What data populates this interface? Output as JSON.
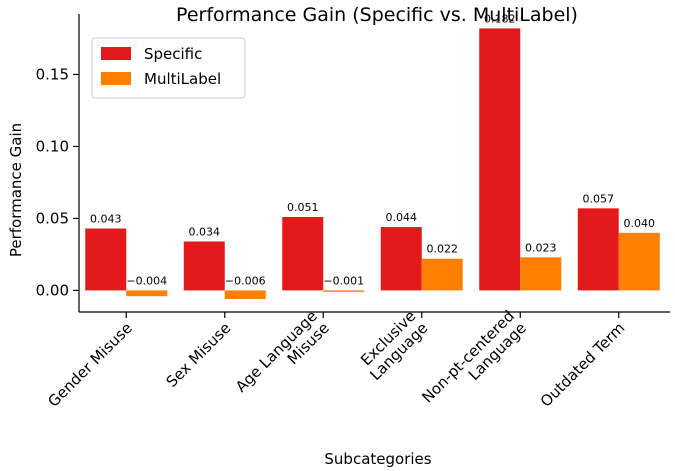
{
  "chart_data": {
    "type": "bar",
    "title": "Performance Gain (Specific vs. MultiLabel)",
    "xlabel": "Subcategories",
    "ylabel": "Performance Gain",
    "categories": [
      [
        "Gender Misuse"
      ],
      [
        "Sex Misuse"
      ],
      [
        "Age Language",
        "Misuse"
      ],
      [
        "Exclusive",
        "Language"
      ],
      [
        "Non-pt-centered",
        "Language"
      ],
      [
        "Outdated Term"
      ]
    ],
    "series": [
      {
        "name": "Specific",
        "color": "#e31a1c",
        "values": [
          0.043,
          0.034,
          0.051,
          0.044,
          0.182,
          0.057
        ],
        "labels": [
          "0.043",
          "0.034",
          "0.051",
          "0.044",
          "0.182",
          "0.057"
        ]
      },
      {
        "name": "MultiLabel",
        "color": "#ff7f00",
        "values": [
          -0.004,
          -0.006,
          -0.001,
          0.022,
          0.023,
          0.04
        ],
        "labels": [
          "−0.004",
          "−0.006",
          "−0.001",
          "0.022",
          "0.023",
          "0.040"
        ]
      }
    ],
    "ylim": [
      -0.015,
      0.192
    ],
    "yticks": [
      0.0,
      0.05,
      0.1,
      0.15
    ],
    "ytick_labels": [
      "0.00",
      "0.05",
      "0.10",
      "0.15"
    ],
    "grid": false,
    "legend_position": "top-left"
  }
}
